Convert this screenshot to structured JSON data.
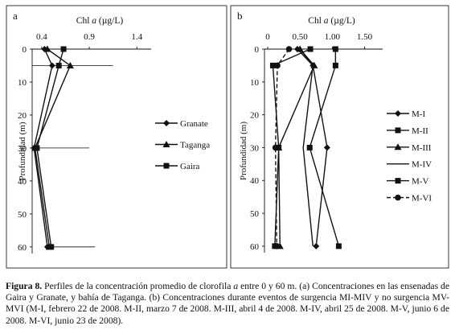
{
  "chart_data": [
    {
      "type": "line",
      "panel_label": "a",
      "title": "Chl a (µg/L)",
      "title_parts": [
        "Chl ",
        "a",
        " (µg/L)"
      ],
      "ylabel": "Profundidad (m)",
      "xlim": [
        0.3,
        1.55
      ],
      "ylim": [
        0,
        62
      ],
      "x_ticks": [
        "0.4",
        "0.9",
        "1.4"
      ],
      "x_tick_values": [
        0.4,
        0.9,
        1.4
      ],
      "y_ticks": [
        "0",
        "10",
        "20",
        "30",
        "40",
        "50",
        "60"
      ],
      "y_tick_values": [
        0,
        10,
        20,
        30,
        40,
        50,
        60
      ],
      "legend_position": "center-right",
      "series": [
        {
          "name": "Granate",
          "marker": "diamond",
          "x": [
            0.43,
            0.51,
            0.32,
            0.46
          ],
          "y": [
            0,
            5,
            30,
            60
          ]
        },
        {
          "name": "Taganga",
          "marker": "triangle",
          "x": [
            0.46,
            0.7,
            0.33,
            0.48
          ],
          "y": [
            0,
            5,
            30,
            60
          ]
        },
        {
          "name": "Gaira",
          "marker": "square",
          "x": [
            0.63,
            0.58,
            0.35,
            0.5
          ],
          "y": [
            0,
            5,
            30,
            60
          ]
        }
      ],
      "error_bars": [
        {
          "y": 0,
          "x_from": 0.33,
          "x_to": 0.92
        },
        {
          "y": 5,
          "x_from": 0.3,
          "x_to": 1.15
        },
        {
          "y": 30,
          "x_from": 0.3,
          "x_to": 0.9
        },
        {
          "y": 60,
          "x_from": 0.45,
          "x_to": 0.96
        }
      ]
    },
    {
      "type": "line",
      "panel_label": "b",
      "title": "Chl a (µg/L)",
      "title_parts": [
        "Chl ",
        "a",
        " (µg/L)"
      ],
      "ylabel": "Profundidad (m)",
      "xlim": [
        -0.05,
        1.78
      ],
      "ylim": [
        0,
        62
      ],
      "x_ticks": [
        "0",
        "0.50",
        "1.00",
        "1.50"
      ],
      "x_tick_values": [
        0,
        0.5,
        1.0,
        1.5
      ],
      "y_ticks": [
        "0",
        "10",
        "20",
        "30",
        "40",
        "50",
        "60"
      ],
      "y_tick_values": [
        0,
        10,
        20,
        30,
        40,
        50,
        60
      ],
      "legend_position": "center-right",
      "series": [
        {
          "name": "M-I",
          "marker": "diamond",
          "dash": false,
          "x": [
            0.46,
            0.7,
            0.92,
            0.75
          ],
          "y": [
            0,
            5,
            30,
            60
          ]
        },
        {
          "name": "M-II",
          "marker": "square",
          "dash": false,
          "x": [
            1.05,
            1.05,
            0.65,
            1.1
          ],
          "y": [
            0,
            5,
            30,
            60
          ]
        },
        {
          "name": "M-III",
          "marker": "triangle",
          "dash": false,
          "x": [
            0.5,
            0.72,
            0.17,
            0.19
          ],
          "y": [
            0,
            5,
            30,
            60
          ]
        },
        {
          "name": "M-IV",
          "marker": "none",
          "dash": false,
          "x": [
            0.5,
            0.7,
            0.55,
            0.7
          ],
          "y": [
            0,
            5,
            30,
            60
          ]
        },
        {
          "name": "M-V",
          "marker": "square",
          "dash": false,
          "x": [
            0.66,
            0.08,
            0.17,
            0.11
          ],
          "y": [
            0,
            5,
            30,
            60
          ]
        },
        {
          "name": "M-VI",
          "marker": "circle",
          "dash": true,
          "x": [
            0.33,
            0.15,
            0.12,
            0.14
          ],
          "y": [
            0,
            5,
            30,
            60
          ]
        }
      ]
    }
  ],
  "caption": {
    "label": "Figura 8.",
    "text_1": " Perfiles de la concentración promedio de  clorofila ",
    "italic_1": "a",
    "text_2": " entre 0 y 60 m. (a) Concentraciones en las ensenadas de Gaira y Granate, y bahía de Taganga.  (b) Concentraciones durante eventos de surgencia MI-MIV y no surgencia MV-MVI  (M-I, febrero 22 de 2008.  M-II, marzo 7 de 2008.  M-III, abril 4 de 2008. M-IV, abril 25 de 2008. M-V, junio 6 de 2008. M-VI, junio 23 de 2008)."
  }
}
